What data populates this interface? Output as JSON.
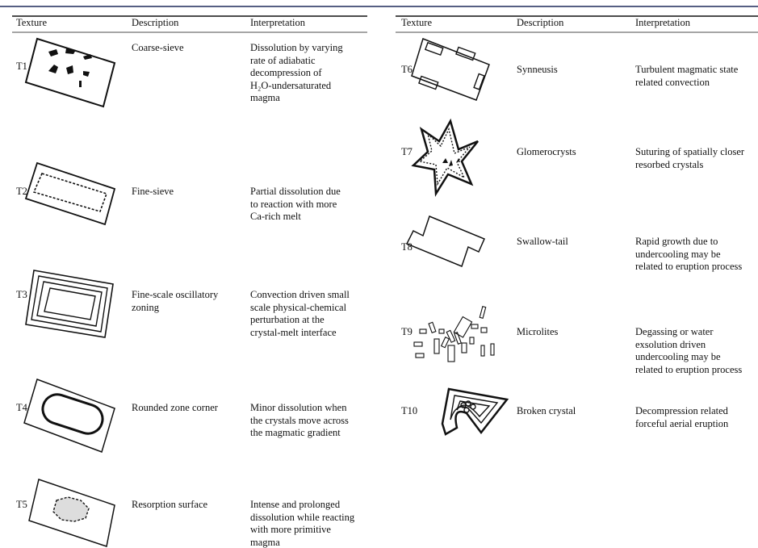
{
  "tables": [
    {
      "headers": [
        "Texture",
        "Description",
        "Interpretation"
      ],
      "rows": [
        {
          "texture": "T1",
          "description": [
            "Coarse-sieve"
          ],
          "interpretation": [
            "Dissolution by varying",
            "rate of adiabatic",
            "decompression of",
            "H₂O-undersaturated",
            "magma"
          ]
        },
        {
          "texture": "T2",
          "description": [
            "Fine-sieve"
          ],
          "interpretation": [
            "Partial dissolution due",
            "to reaction with more",
            "Ca-rich melt"
          ]
        },
        {
          "texture": "T3",
          "description": [
            "Fine-scale oscillatory",
            "zoning"
          ],
          "interpretation": [
            "Convection driven small",
            "scale physical-chemical",
            "perturbation at the",
            "crystal-melt interface"
          ]
        },
        {
          "texture": "T4",
          "description": [
            "Rounded zone corner"
          ],
          "interpretation": [
            "Minor dissolution when",
            "the crystals move across",
            "the magmatic gradient"
          ]
        },
        {
          "texture": "T5",
          "description": [
            "Resorption surface"
          ],
          "interpretation": [
            "Intense and prolonged",
            "dissolution while reacting",
            "with more primitive",
            "magma"
          ]
        }
      ]
    },
    {
      "headers": [
        "Texture",
        "Description",
        "Interpretation"
      ],
      "rows": [
        {
          "texture": "T6",
          "description": [
            "Synneusis"
          ],
          "interpretation": [
            "Turbulent magmatic state",
            "related convection"
          ]
        },
        {
          "texture": "T7",
          "description": [
            "Glomerocrysts"
          ],
          "interpretation": [
            "Suturing of spatially closer",
            "resorbed crystals"
          ]
        },
        {
          "texture": "T8",
          "description": [
            "Swallow-tail"
          ],
          "interpretation": [
            "Rapid growth due to",
            "undercooling may be",
            "related to eruption process"
          ]
        },
        {
          "texture": "T9",
          "description": [
            "Microlites"
          ],
          "interpretation": [
            "Degassing or water",
            "exsolution driven",
            "undercooling may be",
            "related to eruption process"
          ]
        },
        {
          "texture": "T10",
          "description": [
            "Broken crystal"
          ],
          "interpretation": [
            "Decompression related",
            "forceful aerial eruption"
          ]
        }
      ]
    }
  ]
}
